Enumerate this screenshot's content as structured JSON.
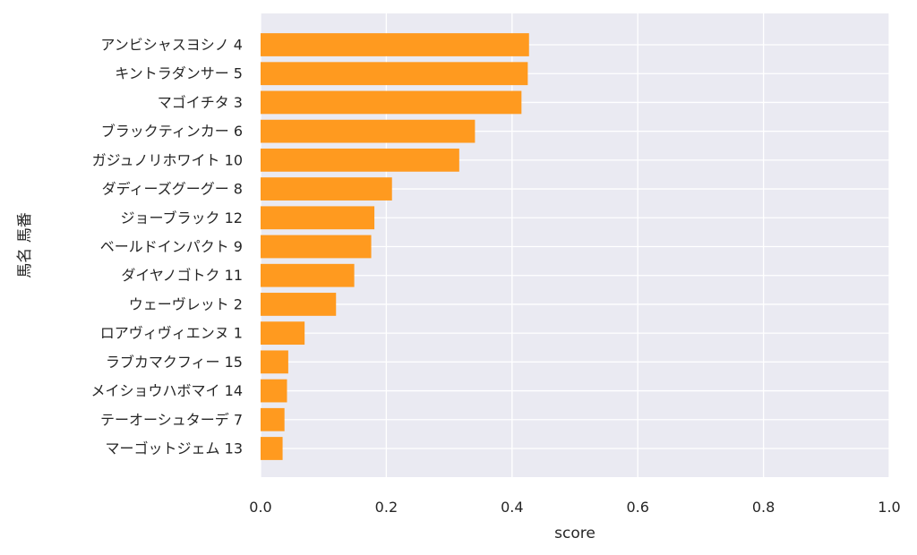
{
  "chart_data": {
    "type": "bar",
    "orientation": "horizontal",
    "xlabel": "score",
    "ylabel": "馬名 馬番",
    "xlim": [
      0,
      1.0
    ],
    "xticks": [
      "0.0",
      "0.2",
      "0.4",
      "0.6",
      "0.8",
      "1.0"
    ],
    "grid": true,
    "bar_color": "#FF9A1F",
    "plot_background": "#EAEAF2",
    "categories": [
      "アンビシャスヨシノ 4",
      "キントラダンサー 5",
      "マゴイチタ 3",
      "ブラックティンカー 6",
      "ガジュノリホワイト 10",
      "ダディーズグーグー 8",
      "ジョーブラック 12",
      "ベールドインパクト 9",
      "ダイヤノゴトク 11",
      "ウェーヴレット 2",
      "ロアヴィヴィエンヌ 1",
      "ラブカマクフィー 15",
      "メイショウハボマイ 14",
      "テーオーシュターデ 7",
      "マーゴットジェム 13"
    ],
    "values": [
      0.427,
      0.425,
      0.415,
      0.341,
      0.316,
      0.209,
      0.181,
      0.176,
      0.149,
      0.12,
      0.07,
      0.044,
      0.042,
      0.038,
      0.035
    ]
  }
}
